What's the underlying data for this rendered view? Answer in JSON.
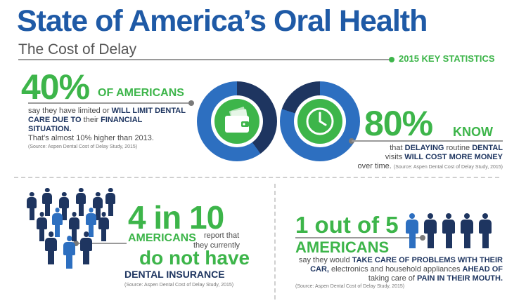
{
  "header": {
    "title": "State of America’s Oral Health",
    "subtitle": "The Cost of Delay",
    "key_stats": "2015 KEY STATISTICS"
  },
  "stat1": {
    "big": "40%",
    "label": "OF AMERICANS",
    "t1": "say they have limited or ",
    "t2": "WILL LIMIT DENTAL CARE DUE TO",
    "t3": " their ",
    "t4": "FINANCIAL SITUATION.",
    "t5": "That’s almost 10% higher than 2013.",
    "source": "(Source: Aspen Dental Cost of Delay Study, 2015)",
    "share": 0.4
  },
  "stat2": {
    "big": "80%",
    "label": "KNOW",
    "t1": "that ",
    "t2": "DELAYING",
    "t3": " routine ",
    "t4": "DENTAL",
    "t5": " visits ",
    "t6": "WILL COST MORE MONEY",
    "t7": " over time.",
    "source": "(Source: Aspen Dental Cost of Delay Study, 2015)",
    "share": 0.8
  },
  "stat3": {
    "big": "4 in 10",
    "label": "AMERICANS",
    "text1": "report that",
    "text2": "they currently",
    "big2": "do not have",
    "label2": "DENTAL INSURANCE",
    "source": "(Source: Aspen Dental Cost of Delay Study, 2015)"
  },
  "stat4": {
    "big": "1 out of 5",
    "label": "AMERICANS",
    "t1": "say they would ",
    "t2": "TAKE CARE OF PROBLEMS WITH THEIR CAR,",
    "t3": " electronics and household appliances ",
    "t4": "AHEAD OF",
    "t5": " taking care of ",
    "t6": "PAIN IN THEIR MOUTH.",
    "source": "(Source: Aspen Dental Cost of Delay Study, 2015)"
  },
  "icons": {
    "donut1": "wallet-icon",
    "donut2": "clock-icon",
    "people": "person-icon"
  },
  "colors": {
    "brand_blue": "#1f5aa6",
    "green": "#3db54a",
    "navy": "#1e3560",
    "ring_blue": "#2d6fc0"
  }
}
